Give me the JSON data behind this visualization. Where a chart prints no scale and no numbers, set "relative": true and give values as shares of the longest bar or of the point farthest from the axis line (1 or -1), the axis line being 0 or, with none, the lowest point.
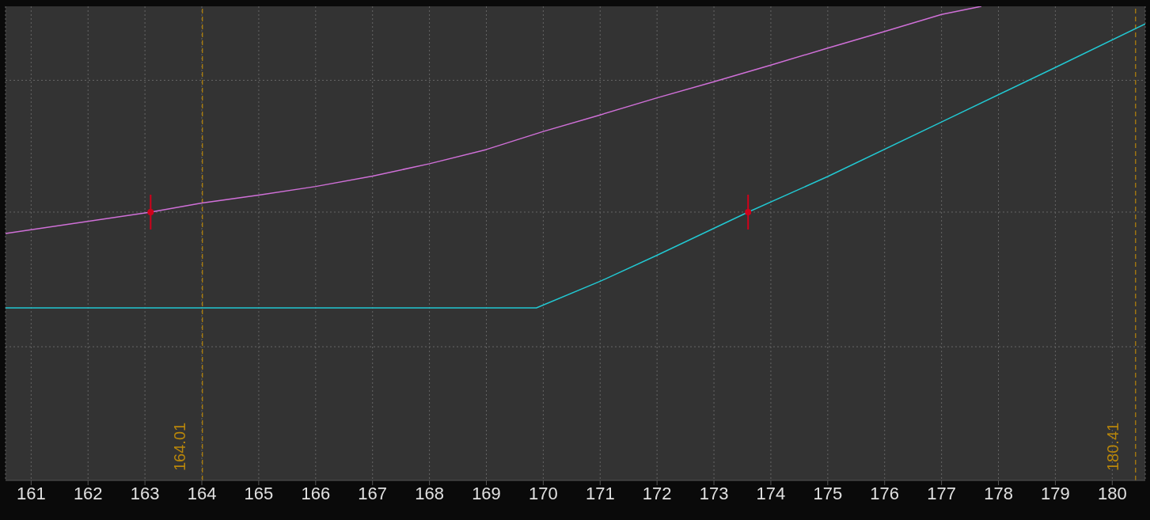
{
  "chart_data": {
    "type": "line",
    "relative": true,
    "xlim": [
      160.55,
      180.58
    ],
    "xticks": [
      161,
      162,
      163,
      164,
      165,
      166,
      167,
      168,
      169,
      170,
      171,
      172,
      173,
      174,
      175,
      176,
      177,
      178,
      179,
      180
    ],
    "grid": true,
    "legend": false,
    "line_style": "solid",
    "marker": "none",
    "series": [
      {
        "color": "#d070d8",
        "x": [
          160.55,
          163.1,
          164,
          165,
          166,
          167,
          168,
          169,
          170,
          171,
          172,
          173,
          174,
          175,
          176,
          177,
          177.7
        ],
        "values": [
          0.521,
          0.566,
          0.585,
          0.602,
          0.62,
          0.642,
          0.668,
          0.698,
          0.736,
          0.771,
          0.807,
          0.841,
          0.876,
          0.912,
          0.947,
          0.983,
          1
        ]
      },
      {
        "color": "#22c8d2",
        "x": [
          160.55,
          169.88,
          171,
          172,
          173.6,
          175,
          177,
          179,
          180.58
        ],
        "values": [
          0.364,
          0.364,
          0.42,
          0.475,
          0.566,
          0.641,
          0.756,
          0.871,
          0.963
        ]
      },
      {
        "type": "scatter",
        "marker": "circle",
        "color": "#d0021b",
        "x": [
          163.1,
          173.6
        ],
        "values": [
          0.566,
          0.566
        ]
      }
    ],
    "ref_lines": [
      {
        "axis": "x",
        "value": 164.01,
        "label": "164.01",
        "color": "#b8860b",
        "line_style": "dashed"
      },
      {
        "axis": "x",
        "value": 180.41,
        "label": "180.41",
        "color": "#b8860b",
        "line_style": "dashed"
      }
    ]
  }
}
